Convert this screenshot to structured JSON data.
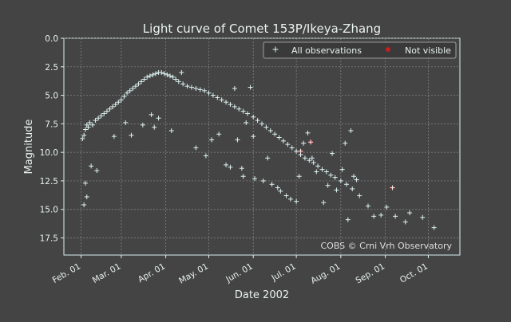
{
  "colors": {
    "background": "#444444",
    "text": "#e8f2f0",
    "axis": "#d8eeee",
    "grid": "#8a8a8a",
    "series_all": "#dff3f3",
    "series_not_visible": "#cc1f1f"
  },
  "chart_data": {
    "type": "scatter",
    "title": "Light curve of Comet 153P/Ikeya-Zhang",
    "xlabel": "Date 2002",
    "ylabel": "Magnitude",
    "x_ticks": [
      "Feb. 01",
      "Mar. 01",
      "Apr. 01",
      "May. 01",
      "Jun. 01",
      "Jul. 01",
      "Aug. 01",
      "Sep. 01",
      "Oct. 01"
    ],
    "y_ticks": [
      "0.0",
      "2.5",
      "5.0",
      "7.5",
      "10.0",
      "12.5",
      "15.0",
      "17.5"
    ],
    "xlim": [
      "2002-01-20",
      "2002-10-23"
    ],
    "ylim": [
      0.0,
      19.0
    ],
    "y_inverted": true,
    "grid": true,
    "legend_position": "top-right",
    "annotation": "COBS © Crni Vrh Observatory",
    "series": [
      {
        "name": "All observations",
        "marker": "plus",
        "points": [
          [
            "2002-02-02",
            8.8
          ],
          [
            "2002-02-03",
            8.5
          ],
          [
            "2002-02-04",
            8.0
          ],
          [
            "2002-02-05",
            7.6
          ],
          [
            "2002-02-06",
            7.8
          ],
          [
            "2002-02-07",
            7.4
          ],
          [
            "2002-02-09",
            7.6
          ],
          [
            "2002-02-11",
            7.2
          ],
          [
            "2002-02-13",
            7.0
          ],
          [
            "2002-02-15",
            6.8
          ],
          [
            "2002-02-17",
            6.6
          ],
          [
            "2002-02-19",
            6.4
          ],
          [
            "2002-02-21",
            6.2
          ],
          [
            "2002-02-23",
            6.0
          ],
          [
            "2002-02-25",
            5.8
          ],
          [
            "2002-02-27",
            5.6
          ],
          [
            "2002-03-01",
            5.4
          ],
          [
            "2002-03-03",
            5.1
          ],
          [
            "2002-03-05",
            4.8
          ],
          [
            "2002-03-07",
            4.6
          ],
          [
            "2002-03-09",
            4.4
          ],
          [
            "2002-03-11",
            4.2
          ],
          [
            "2002-03-13",
            4.0
          ],
          [
            "2002-03-15",
            3.8
          ],
          [
            "2002-03-17",
            3.6
          ],
          [
            "2002-03-19",
            3.4
          ],
          [
            "2002-03-21",
            3.3
          ],
          [
            "2002-03-23",
            3.2
          ],
          [
            "2002-03-25",
            3.1
          ],
          [
            "2002-03-27",
            3.0
          ],
          [
            "2002-03-29",
            3.0
          ],
          [
            "2002-03-31",
            3.1
          ],
          [
            "2002-04-02",
            3.2
          ],
          [
            "2002-04-04",
            3.3
          ],
          [
            "2002-04-06",
            3.4
          ],
          [
            "2002-04-08",
            3.6
          ],
          [
            "2002-04-10",
            3.8
          ],
          [
            "2002-04-13",
            4.0
          ],
          [
            "2002-04-16",
            4.2
          ],
          [
            "2002-04-19",
            4.3
          ],
          [
            "2002-04-22",
            4.4
          ],
          [
            "2002-04-25",
            4.5
          ],
          [
            "2002-04-28",
            4.6
          ],
          [
            "2002-05-01",
            4.8
          ],
          [
            "2002-05-04",
            5.0
          ],
          [
            "2002-05-07",
            5.2
          ],
          [
            "2002-05-10",
            5.4
          ],
          [
            "2002-05-13",
            5.6
          ],
          [
            "2002-05-16",
            5.8
          ],
          [
            "2002-05-19",
            6.0
          ],
          [
            "2002-05-22",
            6.2
          ],
          [
            "2002-05-25",
            6.4
          ],
          [
            "2002-05-28",
            6.6
          ],
          [
            "2002-06-01",
            6.9
          ],
          [
            "2002-06-04",
            7.2
          ],
          [
            "2002-06-07",
            7.5
          ],
          [
            "2002-06-10",
            7.8
          ],
          [
            "2002-06-13",
            8.1
          ],
          [
            "2002-06-16",
            8.4
          ],
          [
            "2002-06-19",
            8.7
          ],
          [
            "2002-06-22",
            9.0
          ],
          [
            "2002-06-25",
            9.3
          ],
          [
            "2002-06-28",
            9.6
          ],
          [
            "2002-07-01",
            9.9
          ],
          [
            "2002-07-04",
            10.2
          ],
          [
            "2002-07-07",
            10.5
          ],
          [
            "2002-07-10",
            10.7
          ],
          [
            "2002-07-13",
            10.9
          ],
          [
            "2002-07-16",
            11.2
          ],
          [
            "2002-07-19",
            11.5
          ],
          [
            "2002-07-22",
            11.7
          ],
          [
            "2002-07-25",
            12.0
          ],
          [
            "2002-07-28",
            12.2
          ],
          [
            "2002-08-01",
            12.5
          ],
          [
            "2002-08-05",
            12.8
          ],
          [
            "2002-08-09",
            13.2
          ],
          [
            "2002-08-14",
            13.8
          ],
          [
            "2002-08-20",
            14.7
          ],
          [
            "2002-08-24",
            15.6
          ],
          [
            "2002-08-29",
            15.5
          ],
          [
            "2002-09-02",
            14.8
          ],
          [
            "2002-09-08",
            15.6
          ],
          [
            "2002-09-15",
            16.1
          ],
          [
            "2002-09-18",
            15.3
          ],
          [
            "2002-09-27",
            15.7
          ],
          [
            "2002-10-05",
            16.6
          ],
          [
            "2002-02-03",
            14.6
          ],
          [
            "2002-02-04",
            12.7
          ],
          [
            "2002-02-05",
            13.9
          ],
          [
            "2002-02-08",
            11.2
          ],
          [
            "2002-02-12",
            11.6
          ],
          [
            "2002-02-24",
            8.6
          ],
          [
            "2002-03-04",
            7.4
          ],
          [
            "2002-03-08",
            8.5
          ],
          [
            "2002-03-16",
            7.6
          ],
          [
            "2002-03-22",
            6.7
          ],
          [
            "2002-03-24",
            7.8
          ],
          [
            "2002-03-27",
            7.0
          ],
          [
            "2002-04-05",
            8.1
          ],
          [
            "2002-04-12",
            3.0
          ],
          [
            "2002-04-22",
            9.6
          ],
          [
            "2002-04-29",
            10.3
          ],
          [
            "2002-05-03",
            8.9
          ],
          [
            "2002-05-08",
            8.4
          ],
          [
            "2002-05-13",
            11.1
          ],
          [
            "2002-05-16",
            11.3
          ],
          [
            "2002-05-19",
            4.4
          ],
          [
            "2002-05-21",
            8.9
          ],
          [
            "2002-05-24",
            11.4
          ],
          [
            "2002-05-25",
            12.1
          ],
          [
            "2002-05-27",
            7.4
          ],
          [
            "2002-05-30",
            4.3
          ],
          [
            "2002-06-01",
            8.6
          ],
          [
            "2002-06-02",
            12.3
          ],
          [
            "2002-06-08",
            12.5
          ],
          [
            "2002-06-11",
            10.5
          ],
          [
            "2002-06-14",
            12.8
          ],
          [
            "2002-06-18",
            13.1
          ],
          [
            "2002-06-20",
            13.4
          ],
          [
            "2002-06-24",
            13.8
          ],
          [
            "2002-06-27",
            14.1
          ],
          [
            "2002-07-01",
            14.3
          ],
          [
            "2002-07-03",
            12.1
          ],
          [
            "2002-07-06",
            9.2
          ],
          [
            "2002-07-09",
            8.3
          ],
          [
            "2002-07-12",
            10.5
          ],
          [
            "2002-07-15",
            11.7
          ],
          [
            "2002-07-20",
            14.4
          ],
          [
            "2002-07-23",
            12.9
          ],
          [
            "2002-07-26",
            10.1
          ],
          [
            "2002-07-29",
            13.3
          ],
          [
            "2002-08-02",
            11.5
          ],
          [
            "2002-08-04",
            9.2
          ],
          [
            "2002-08-06",
            15.9
          ],
          [
            "2002-08-08",
            8.1
          ],
          [
            "2002-08-10",
            12.1
          ],
          [
            "2002-08-12",
            12.4
          ]
        ]
      },
      {
        "name": "Not visible",
        "marker": "plus",
        "points": [
          [
            "2002-07-04",
            9.9
          ],
          [
            "2002-07-11",
            9.1
          ],
          [
            "2002-09-06",
            13.1
          ]
        ]
      }
    ]
  }
}
